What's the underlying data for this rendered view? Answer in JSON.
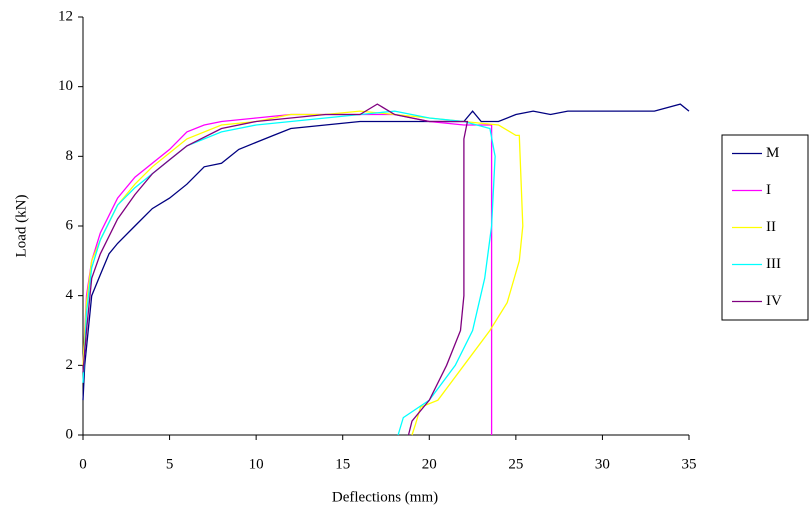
{
  "chart_data": {
    "type": "line",
    "x_label": "Deflections (mm)",
    "y_label": "Load (kN)",
    "xlim": [
      0,
      35
    ],
    "xticks": [
      0,
      5,
      10,
      15,
      20,
      25,
      30,
      35
    ],
    "ylim": [
      0,
      12
    ],
    "yticks": [
      0,
      2,
      4,
      6,
      8,
      10,
      12
    ],
    "grid": false,
    "legend": "right",
    "series": [
      {
        "name": "M",
        "color": "#000080",
        "x": [
          0,
          0.1,
          0.3,
          0.5,
          1,
          1.5,
          2,
          3,
          4,
          5,
          6,
          7,
          8,
          9,
          10,
          11,
          12,
          14,
          16,
          18,
          20,
          22,
          22.5,
          23,
          24,
          25,
          26,
          27,
          28,
          30,
          33,
          34.5,
          35
        ],
        "values": [
          1,
          2,
          3,
          4,
          4.6,
          5.2,
          5.5,
          6,
          6.5,
          6.8,
          7.2,
          7.7,
          7.8,
          8.2,
          8.4,
          8.6,
          8.8,
          8.9,
          9,
          9,
          9,
          9,
          9.3,
          9,
          9,
          9.2,
          9.3,
          9.2,
          9.3,
          9.3,
          9.3,
          9.5,
          9.3
        ]
      },
      {
        "name": "I",
        "color": "#ff00ff",
        "x": [
          0,
          0.2,
          0.5,
          1,
          2,
          3,
          4,
          5,
          6,
          7,
          8,
          10,
          12,
          14,
          16,
          18,
          20,
          22,
          23.6,
          23.6
        ],
        "values": [
          2,
          4,
          5,
          5.8,
          6.8,
          7.4,
          7.8,
          8.2,
          8.7,
          8.9,
          9,
          9.1,
          9.2,
          9.2,
          9.2,
          9.2,
          9,
          8.9,
          8.9,
          0
        ]
      },
      {
        "name": "II",
        "color": "#ffff00",
        "x": [
          0,
          0.2,
          0.5,
          1,
          2,
          3,
          4,
          5,
          6,
          8,
          10,
          12,
          14,
          16,
          18,
          20,
          22,
          24,
          25,
          25.2,
          25.4,
          25.2,
          24.5,
          23.5,
          22,
          20.5,
          19.5,
          19.2,
          19
        ],
        "values": [
          2,
          3.8,
          5,
          5.6,
          6.6,
          7.2,
          7.7,
          8.1,
          8.5,
          8.9,
          9,
          9.2,
          9.2,
          9.3,
          9.2,
          9.1,
          9,
          8.9,
          8.6,
          8.6,
          6,
          5,
          3.8,
          3,
          2,
          1,
          0.8,
          0.3,
          0
        ]
      },
      {
        "name": "III",
        "color": "#00ffff",
        "x": [
          0,
          0.2,
          0.5,
          1,
          2,
          3,
          4,
          5,
          6,
          8,
          10,
          12,
          14,
          16,
          18,
          20,
          22,
          23.5,
          23.8,
          23.6,
          23.2,
          22.5,
          21.5,
          20,
          18.5,
          18.2
        ],
        "values": [
          1.5,
          3.5,
          4.8,
          5.6,
          6.6,
          7.1,
          7.5,
          7.9,
          8.3,
          8.7,
          8.9,
          9,
          9.1,
          9.2,
          9.3,
          9.1,
          9,
          8.8,
          8,
          6,
          4.5,
          3,
          2,
          1,
          0.5,
          0
        ]
      },
      {
        "name": "IV",
        "color": "#800080",
        "x": [
          0,
          0.2,
          0.5,
          1,
          2,
          3,
          4,
          5,
          6,
          8,
          10,
          12,
          14,
          16,
          17,
          18,
          20,
          22.2,
          22,
          22,
          21.8,
          21,
          20,
          19,
          18.8
        ],
        "values": [
          1.8,
          3,
          4.5,
          5.2,
          6.2,
          6.9,
          7.5,
          7.9,
          8.3,
          8.8,
          9,
          9.1,
          9.2,
          9.2,
          9.5,
          9.2,
          9,
          9,
          8.5,
          4,
          3,
          2,
          1,
          0.4,
          0
        ]
      }
    ]
  }
}
